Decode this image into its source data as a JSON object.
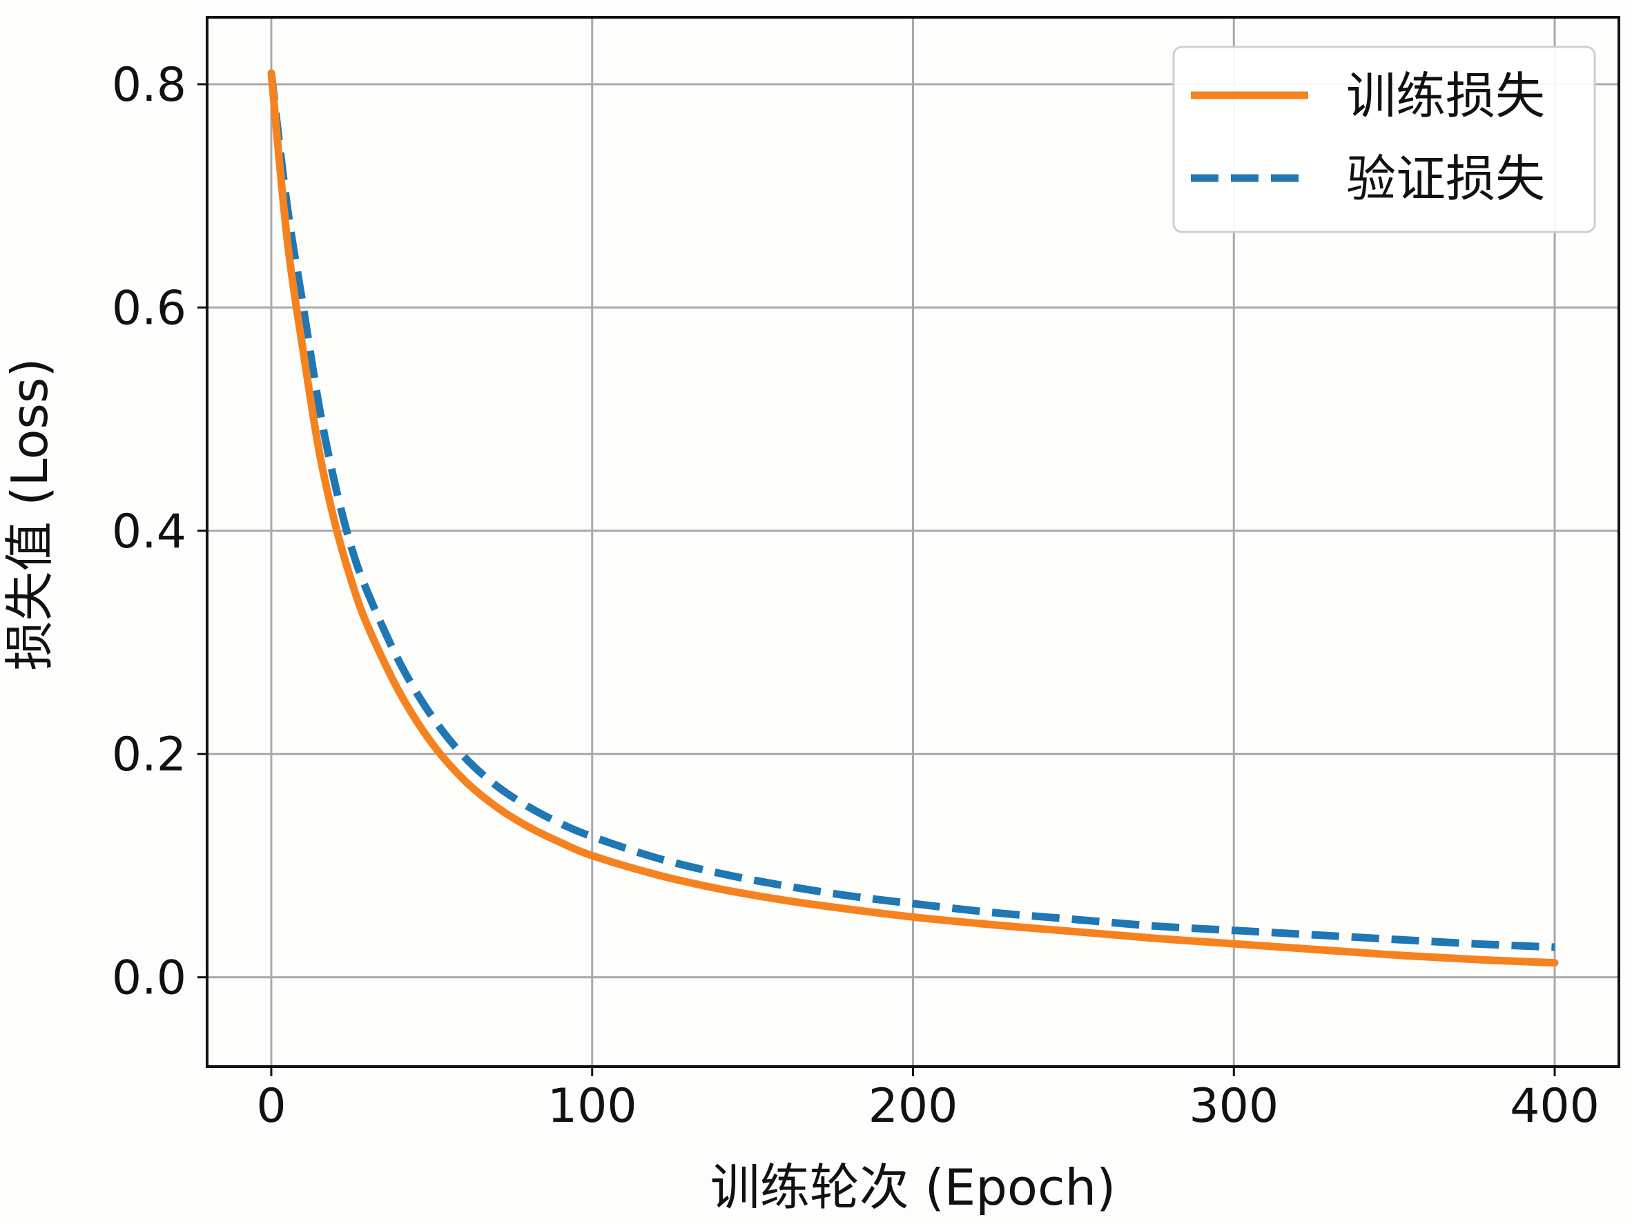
{
  "chart_data": {
    "type": "line",
    "xlabel": "训练轮次 (Epoch)",
    "ylabel": "损失值 (Loss)",
    "xlim": [
      -20,
      420
    ],
    "ylim": [
      -0.08,
      0.86
    ],
    "x_ticks": [
      0,
      100,
      200,
      300,
      400
    ],
    "y_ticks": [
      0.0,
      0.2,
      0.4,
      0.6,
      0.8
    ],
    "x_tick_labels": [
      "0",
      "100",
      "200",
      "300",
      "400"
    ],
    "y_tick_labels": [
      "0.0",
      "0.2",
      "0.4",
      "0.6",
      "0.8"
    ],
    "grid": true,
    "legend_position": "top-right",
    "x": [
      0,
      5,
      10,
      15,
      20,
      25,
      30,
      40,
      50,
      60,
      70,
      80,
      90,
      100,
      120,
      140,
      160,
      180,
      200,
      225,
      250,
      275,
      300,
      325,
      350,
      375,
      400
    ],
    "series": [
      {
        "name": "训练损失",
        "color": "#f5821f",
        "style": "solid",
        "values": [
          0.81,
          0.66,
          0.56,
          0.47,
          0.405,
          0.355,
          0.315,
          0.255,
          0.21,
          0.177,
          0.153,
          0.135,
          0.121,
          0.109,
          0.092,
          0.079,
          0.069,
          0.061,
          0.054,
          0.047,
          0.041,
          0.035,
          0.03,
          0.025,
          0.02,
          0.016,
          0.013
        ]
      },
      {
        "name": "验证损失",
        "color": "#1f77b4",
        "style": "dashed",
        "values": [
          0.81,
          0.69,
          0.6,
          0.51,
          0.44,
          0.385,
          0.345,
          0.282,
          0.234,
          0.198,
          0.172,
          0.153,
          0.138,
          0.126,
          0.107,
          0.093,
          0.082,
          0.073,
          0.066,
          0.058,
          0.052,
          0.046,
          0.042,
          0.038,
          0.034,
          0.03,
          0.027
        ]
      }
    ]
  }
}
